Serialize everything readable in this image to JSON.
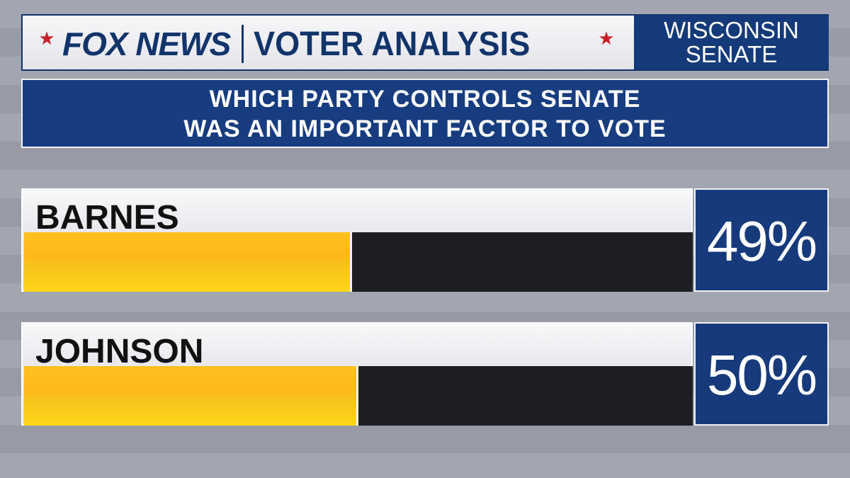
{
  "header": {
    "brand": "FOX NEWS",
    "title": "VOTER ANALYSIS",
    "race_line1": "WISCONSIN",
    "race_line2": "SENATE"
  },
  "question": {
    "line1": "WHICH PARTY CONTROLS SENATE",
    "line2": "WAS AN IMPORTANT FACTOR TO VOTE"
  },
  "colors": {
    "navy": "#163a7b",
    "bar_fill": "#ffc01f",
    "bar_track": "#1e1e22",
    "star": "#c8202a"
  },
  "chart_data": {
    "type": "bar",
    "orientation": "horizontal",
    "categories": [
      "BARNES",
      "JOHNSON"
    ],
    "values": [
      49,
      50
    ],
    "value_labels": [
      "49%",
      "50%"
    ],
    "xlim": [
      0,
      100
    ]
  }
}
